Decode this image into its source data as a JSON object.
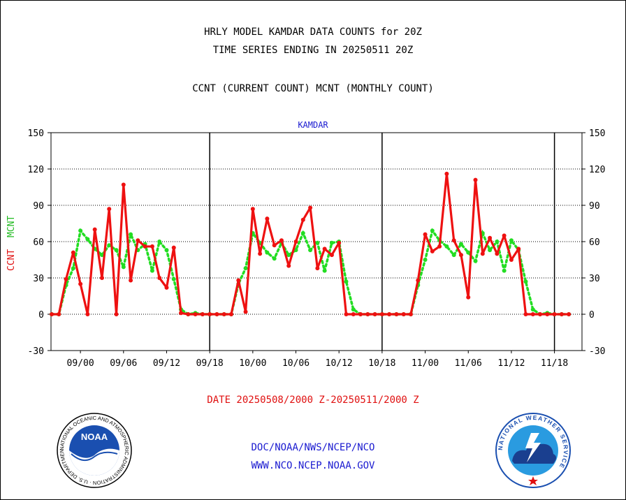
{
  "titles": {
    "line1": "HRLY MODEL KAMDAR DATA COUNTS for 20Z",
    "line2": "TIME SERIES ENDING IN 20250511 20Z",
    "line3": "CCNT (CURRENT COUNT) MCNT (MONTHLY COUNT)"
  },
  "date_label": "DATE 20250508/2000 Z-20250511/2000 Z",
  "footer": {
    "line1": "DOC/NOAA/NWS/NCEP/NCO",
    "line2": "WWW.NCO.NCEP.NOAA.GOV"
  },
  "logos": {
    "noaa_text": "NOAA",
    "noaa_ring": "NATIONAL OCEANIC AND ATMOSPHERIC ADMINISTRATION · U.S. DEPARTMENT OF COMMERCE",
    "nws_ring": "NATIONAL WEATHER SERVICE"
  },
  "colors": {
    "ccnt": "#ee1111",
    "mcnt": "#22dd22",
    "title": "#000000",
    "station": "#1a1ad0",
    "date": "#e01010",
    "footer": "#1a1ad0"
  },
  "chart_data": {
    "type": "line",
    "title": "KAMDAR",
    "ylabel_left_1": "CCNT",
    "ylabel_left_2": "MCNT",
    "ylim": [
      -30,
      150
    ],
    "yticks": [
      -30,
      0,
      30,
      60,
      90,
      120,
      150
    ],
    "grid": true,
    "xlim": [
      0,
      72
    ],
    "xtick_labels": [
      {
        "x": 4,
        "label": "09/00"
      },
      {
        "x": 10,
        "label": "09/06"
      },
      {
        "x": 16,
        "label": "09/12"
      },
      {
        "x": 22,
        "label": "09/18"
      },
      {
        "x": 28,
        "label": "10/00"
      },
      {
        "x": 34,
        "label": "10/06"
      },
      {
        "x": 40,
        "label": "10/12"
      },
      {
        "x": 46,
        "label": "10/18"
      },
      {
        "x": 52,
        "label": "11/00"
      },
      {
        "x": 58,
        "label": "11/06"
      },
      {
        "x": 64,
        "label": "11/12"
      },
      {
        "x": 70,
        "label": "11/18"
      }
    ],
    "day_boundaries": [
      22,
      46,
      70
    ],
    "series": [
      {
        "name": "CCNT",
        "values": [
          0,
          0,
          29,
          51,
          25,
          0,
          70,
          30,
          87,
          0,
          107,
          28,
          61,
          56,
          56,
          30,
          22,
          55,
          1,
          0,
          0,
          0,
          0,
          0,
          0,
          0,
          28,
          2,
          87,
          50,
          79,
          57,
          61,
          40,
          60,
          78,
          88,
          38,
          54,
          49,
          59,
          0,
          0,
          0,
          0,
          0,
          0,
          0,
          0,
          0,
          0,
          28,
          66,
          52,
          56,
          116,
          61,
          49,
          14,
          111,
          50,
          63,
          50,
          65,
          45,
          54,
          0,
          0,
          0,
          0,
          0,
          0,
          0
        ]
      },
      {
        "name": "MCNT",
        "values": [
          0,
          0,
          24,
          38,
          69,
          62,
          54,
          49,
          57,
          53,
          39,
          66,
          53,
          58,
          36,
          60,
          53,
          29,
          4,
          0,
          1,
          0,
          0,
          0,
          0,
          0,
          25,
          38,
          67,
          59,
          51,
          46,
          59,
          49,
          53,
          67,
          53,
          59,
          36,
          59,
          60,
          27,
          4,
          0,
          0,
          0,
          0,
          0,
          0,
          0,
          0,
          24,
          45,
          69,
          61,
          56,
          49,
          58,
          51,
          44,
          67,
          53,
          60,
          36,
          61,
          53,
          27,
          4,
          0,
          1,
          0,
          0,
          0
        ]
      }
    ]
  }
}
